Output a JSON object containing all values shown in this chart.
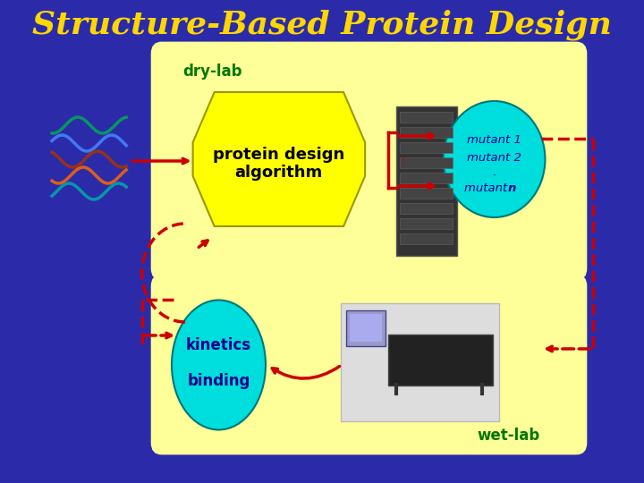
{
  "title": "Structure-Based Protein Design",
  "title_color": "#FFD700",
  "title_fontsize": 26,
  "bg_color": "#2B2BAA",
  "box_color": "#FFFF99",
  "dry_lab_label": "dry-lab",
  "wet_lab_label": "wet-lab",
  "label_color": "#007700",
  "algo_text": "protein design\nalgorithm",
  "algo_box_color": "#FFFF00",
  "mutant_ellipse_color": "#00DDDD",
  "kinetics_ellipse_color": "#00DDDD",
  "arrow_color": "#CC0000",
  "dashed_color": "#CC0000"
}
